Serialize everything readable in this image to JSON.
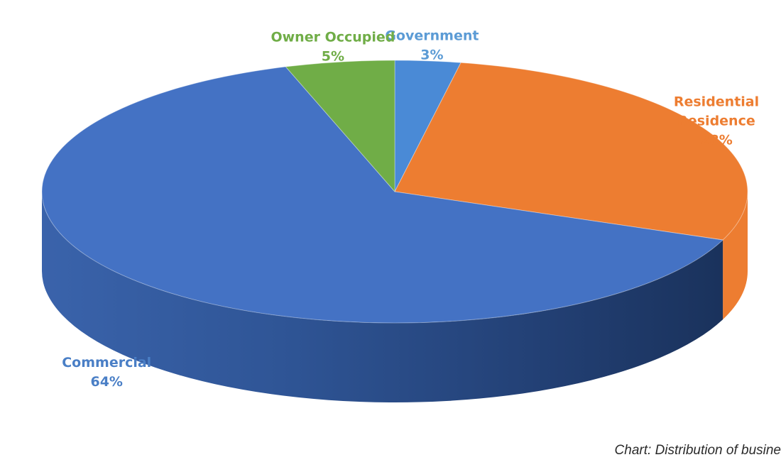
{
  "chart_data": {
    "type": "pie",
    "style": "3d",
    "title": "",
    "slices": [
      {
        "name": "Government",
        "label_lines": [
          "Government"
        ],
        "value": 3,
        "value_label": "3%",
        "color": "#4a8ad6",
        "label_color": "#5b9bd5"
      },
      {
        "name": "Residential Residence",
        "label_lines": [
          "Residential",
          "Residence"
        ],
        "value": 28,
        "value_label": "28%",
        "color": "#ed7d31",
        "label_color": "#ed7d31"
      },
      {
        "name": "Commercial",
        "label_lines": [
          "Commercial"
        ],
        "value": 64,
        "value_label": "64%",
        "color": "#4472c4",
        "label_color": "#4a7fc6"
      },
      {
        "name": "Owner Occupied",
        "label_lines": [
          "Owner Occupied"
        ],
        "value": 5,
        "value_label": "5%",
        "color": "#70ad47",
        "label_color": "#70ad47"
      }
    ],
    "legend": "none",
    "data_labels": "outside"
  },
  "caption": "Chart: Distribution of busine"
}
